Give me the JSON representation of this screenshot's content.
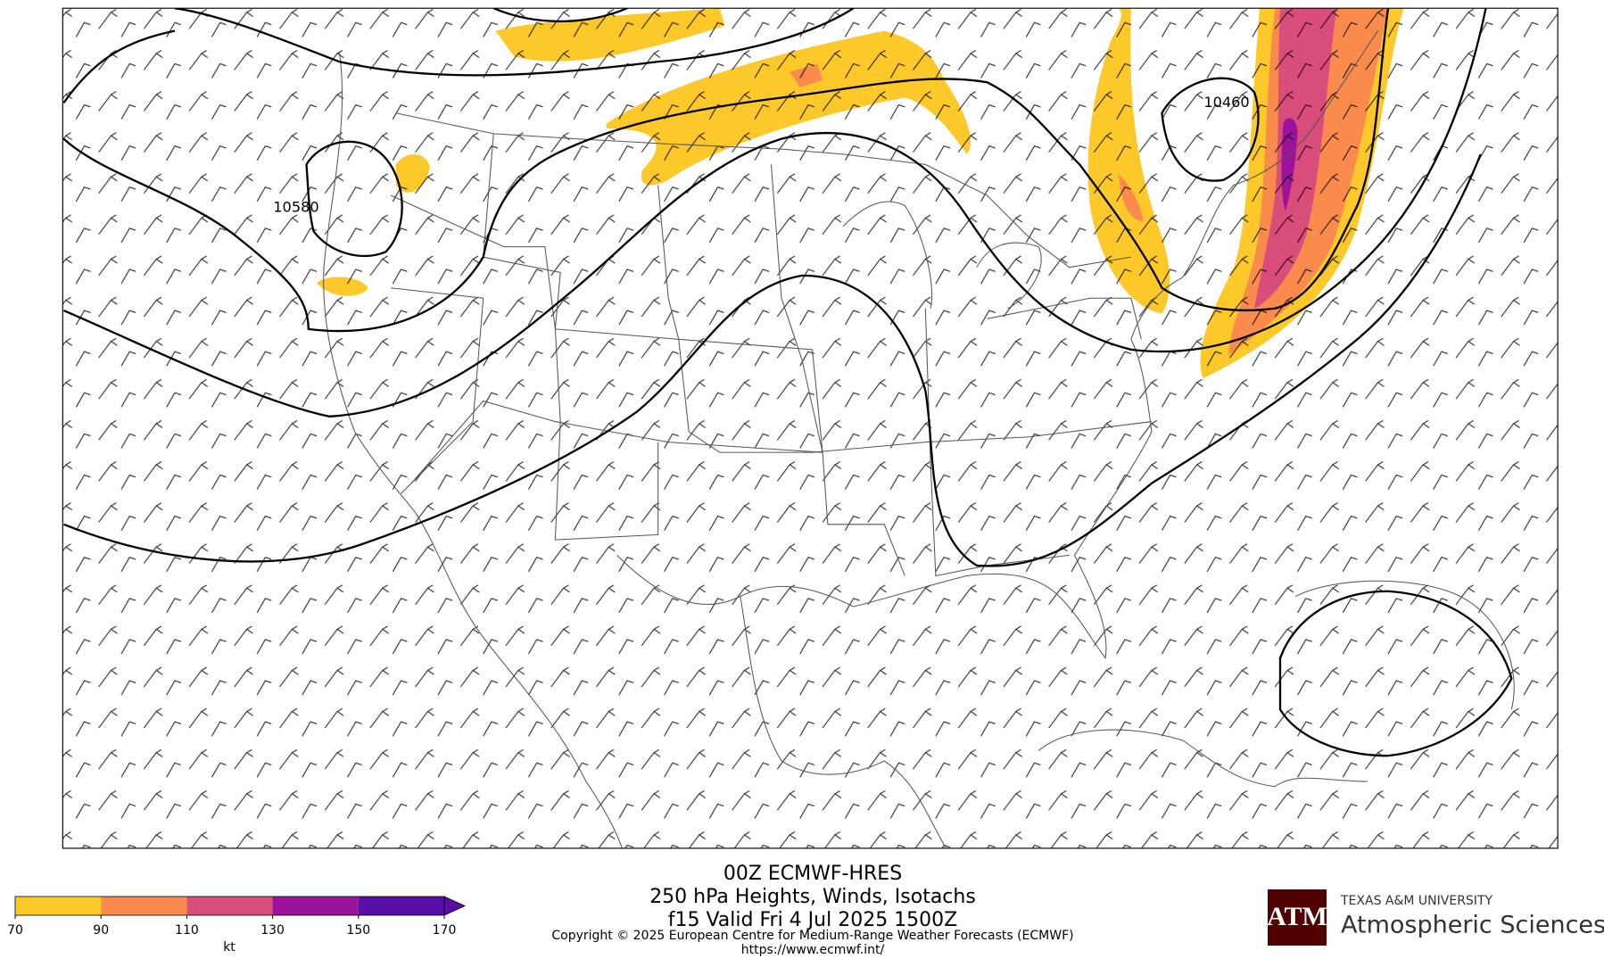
{
  "header": {
    "title_lines": [
      "00Z ECMWF-HRES",
      "250 hPa Heights, Winds, Isotachs",
      "f15 Valid Fri 4 Jul 2025 1500Z"
    ],
    "copyright": "Copyright © 2025 European Centre for Medium-Range Weather Forecasts (ECMWF)",
    "url": "https://www.ecmwf.int/"
  },
  "colorbar": {
    "ticks": [
      70,
      90,
      110,
      130,
      150,
      170
    ],
    "colors": [
      "#fcc82a",
      "#f98b4d",
      "#d94d7b",
      "#9b129b",
      "#5a0ea8"
    ],
    "unit": "kt"
  },
  "contour_labels": [
    "10580",
    "10460"
  ],
  "logo": {
    "mark": "ATM",
    "university": "TEXAS A&M UNIVERSITY",
    "department": "Atmospheric Sciences"
  }
}
